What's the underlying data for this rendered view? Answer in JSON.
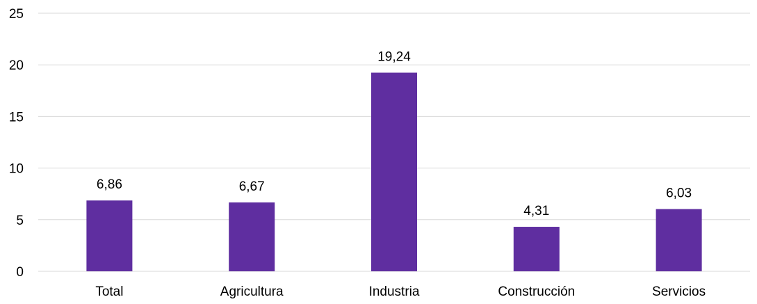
{
  "chart_data": {
    "type": "bar",
    "title": "",
    "xlabel": "",
    "ylabel": "",
    "categories": [
      "Total",
      "Agricultura",
      "Industria",
      "Construcción",
      "Servicios"
    ],
    "values": [
      6.86,
      6.67,
      19.24,
      4.31,
      6.03
    ],
    "value_labels": [
      "6,86",
      "6,67",
      "19,24",
      "4,31",
      "6,03"
    ],
    "ylim": [
      0,
      25
    ],
    "yticks": [
      0,
      5,
      10,
      15,
      20,
      25
    ],
    "ytick_labels": [
      "0",
      "5",
      "10",
      "15",
      "20",
      "25"
    ],
    "grid": true,
    "legend": "none",
    "bar_color": "#5f2ea0",
    "grid_color": "#d9d9d9"
  }
}
